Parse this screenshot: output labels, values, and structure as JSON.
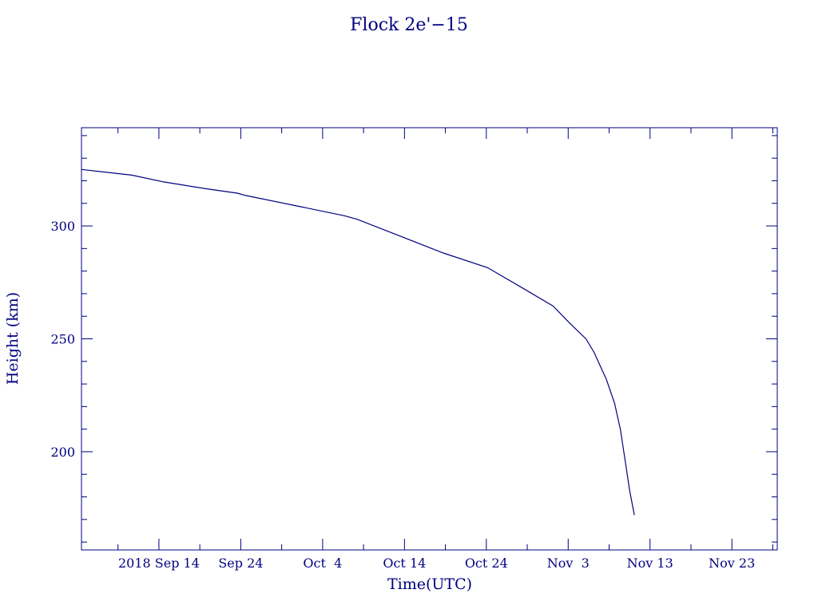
{
  "chart_data": {
    "type": "line",
    "title": "Flock 2e'−15",
    "xlabel": "Time(UTC)",
    "ylabel": "Height (km)",
    "color": "#000080",
    "x_tick_labels": [
      "2018 Sep 14",
      "Sep 24",
      "Oct  4",
      "Oct 14",
      "Oct 24",
      "Nov  3",
      "Nov 13",
      "Nov 23"
    ],
    "x_tick_dates": [
      "2018-09-14",
      "2018-09-24",
      "2018-10-04",
      "2018-10-14",
      "2018-10-24",
      "2018-11-03",
      "2018-11-13",
      "2018-11-23"
    ],
    "xlim": [
      "2018-09-04T13:00",
      "2018-11-28T13:00"
    ],
    "y_tick_labels": [
      "200",
      "250",
      "300"
    ],
    "y_ticks": [
      200,
      250,
      300
    ],
    "ylim": [
      156.5,
      343.5
    ],
    "grid": false,
    "series": [
      {
        "x": [
          "2018-09-04T13:00",
          "2018-09-10T16:00",
          "2018-09-14T14:00",
          "2018-09-19T17:00",
          "2018-09-23T14:00",
          "2018-09-24T14:00",
          "2018-09-30T16:00",
          "2018-10-06T16:00",
          "2018-10-08T04:00",
          "2018-10-14T04:00",
          "2018-10-18T18:00",
          "2018-10-24T04:00",
          "2018-10-28T16:00",
          "2018-11-01T04:00",
          "2018-11-03T04:00",
          "2018-11-05T04:00",
          "2018-11-06T04:00",
          "2018-11-07T16:00",
          "2018-11-08T16:00",
          "2018-11-09T09:00",
          "2018-11-10T02:00",
          "2018-11-10T12:00",
          "2018-11-11T02:00"
        ],
        "y": [
          325,
          322.5,
          319.5,
          316.5,
          314.5,
          313.5,
          309,
          304.5,
          303,
          294.5,
          288,
          281.5,
          272,
          264.5,
          257,
          250,
          244,
          232,
          221.5,
          210,
          193,
          183,
          172
        ]
      }
    ]
  }
}
